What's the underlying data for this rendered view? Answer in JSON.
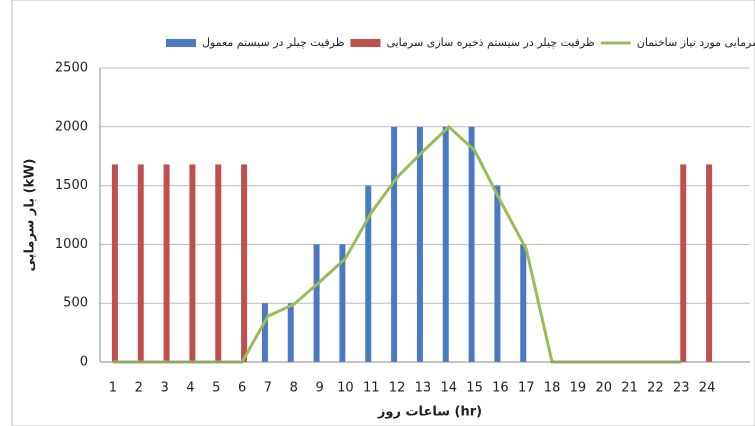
{
  "chart_data": {
    "type": "bar-line",
    "categories": [
      "1",
      "2",
      "3",
      "4",
      "5",
      "6",
      "7",
      "8",
      "9",
      "10",
      "11",
      "12",
      "13",
      "14",
      "15",
      "16",
      "17",
      "18",
      "19",
      "20",
      "21",
      "22",
      "23",
      "24"
    ],
    "series": [
      {
        "name": "ظرفیت چیلر در سیستم معمول",
        "color": "#4a7ac2",
        "kind": "bar",
        "values": [
          null,
          null,
          null,
          null,
          null,
          null,
          500,
          500,
          1000,
          1000,
          1500,
          2000,
          2000,
          2000,
          2000,
          1500,
          1000,
          null,
          null,
          null,
          null,
          null,
          null,
          null
        ]
      },
      {
        "name": "ظرفیت چیلر در سیستم ذخیره سازی سرمایی",
        "color": "#c0504d",
        "kind": "bar",
        "values": [
          1680,
          1680,
          1680,
          1680,
          1680,
          1680,
          null,
          null,
          null,
          null,
          null,
          null,
          null,
          null,
          null,
          null,
          null,
          null,
          null,
          null,
          null,
          null,
          1680,
          1680
        ]
      },
      {
        "name": "بار سرمایی مورد نیاز ساختمان",
        "color": "#9bbb59",
        "kind": "line",
        "values": [
          0,
          0,
          0,
          0,
          0,
          0,
          390,
          490,
          680,
          880,
          1270,
          1570,
          1790,
          2000,
          1800,
          1370,
          960,
          0,
          0,
          0,
          0,
          0,
          0,
          null
        ]
      }
    ],
    "x_label": "ساعات روز (hr)",
    "y_label": "بار سرمایی (kW)",
    "ylim": [
      0,
      2500
    ],
    "yticks": [
      0,
      500,
      1000,
      1500,
      2000,
      2500
    ],
    "grid": true
  }
}
